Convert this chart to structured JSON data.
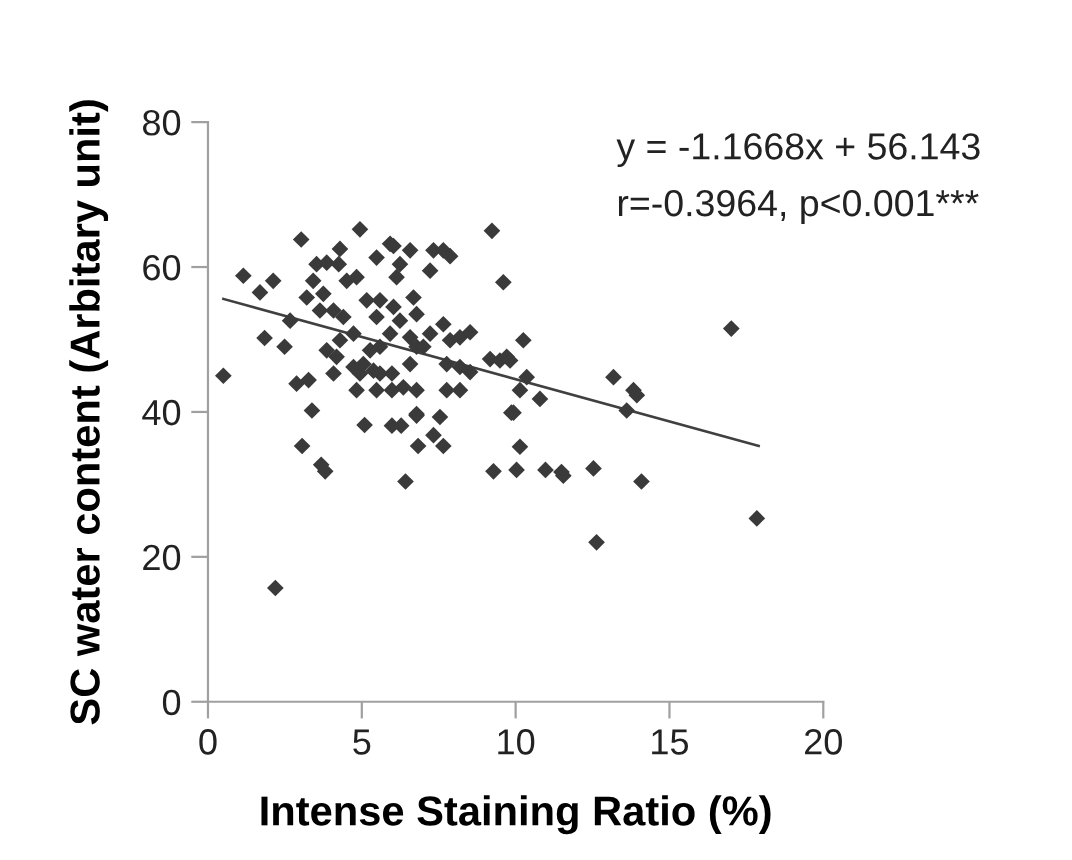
{
  "chart_data": {
    "type": "scatter",
    "xlabel": "Intense Staining Ratio (%)",
    "ylabel": "SC water content (Arbitary unit)",
    "annotations": [
      "y = -1.1668x + 56.143",
      "r=-0.3964, p<0.001***"
    ],
    "xlim": [
      0,
      20
    ],
    "xticks": [
      0,
      5,
      10,
      15,
      20
    ],
    "ylim": [
      0,
      80
    ],
    "yticks": [
      0,
      20,
      40,
      60,
      80
    ],
    "grid": false,
    "legend": false,
    "series": [
      {
        "marker": "diamond",
        "color": "#3a3a3a",
        "x": [
          0.5,
          1.15,
          1.69,
          2.12,
          1.84,
          3.03,
          2.49,
          2.67,
          2.88,
          3.27,
          3.38,
          3.53,
          3.86,
          4.29,
          4.25,
          3.42,
          3.21,
          3.75,
          3.64,
          4.08,
          4.94,
          4.83,
          4.51,
          4.4,
          4.29,
          3.86,
          4.08,
          4.73,
          4.73,
          4.94,
          4.83,
          5.38,
          5.48,
          5.16,
          5.59,
          5.48,
          5.92,
          6.03,
          6.24,
          6.13,
          6.03,
          6.24,
          5.92,
          5.59,
          5.27,
          5.05,
          5.59,
          5.98,
          5.98,
          5.48,
          6.57,
          6.68,
          6.78,
          6.57,
          6.78,
          6.57,
          6.35,
          6.78,
          6.78,
          7.33,
          7.65,
          7.87,
          7.22,
          7.65,
          7.22,
          7.0,
          7.87,
          8.19,
          8.52,
          7.76,
          8.19,
          7.76,
          8.19,
          8.52,
          9.17,
          9.49,
          9.71,
          9.23,
          9.6,
          10.25,
          10.36,
          10.14,
          9.93,
          4.18,
          3.06,
          3.68,
          3.81,
          2.19,
          5.09,
          5.98,
          6.28,
          6.78,
          7.54,
          6.83,
          7.33,
          7.65,
          6.42,
          9.86,
          9.28,
          10.03,
          10.14,
          17.01,
          9.82,
          10.79,
          13.18,
          13.83,
          13.94,
          13.61,
          10.97,
          11.49,
          11.55,
          12.53,
          14.09,
          12.63,
          17.84
        ],
        "values": [
          45.0,
          58.8,
          56.5,
          58.1,
          50.2,
          63.8,
          49.0,
          52.6,
          43.9,
          44.4,
          40.2,
          60.4,
          60.6,
          62.5,
          60.4,
          58.1,
          55.8,
          56.3,
          54.0,
          54.0,
          65.2,
          58.6,
          58.1,
          53.1,
          49.9,
          48.5,
          45.3,
          50.8,
          46.2,
          45.3,
          43.0,
          45.7,
          53.1,
          55.4,
          55.4,
          61.3,
          63.2,
          62.9,
          60.4,
          58.6,
          54.5,
          52.6,
          50.8,
          49.0,
          48.5,
          46.6,
          45.3,
          45.3,
          43.0,
          43.0,
          62.3,
          55.8,
          53.5,
          50.3,
          49.0,
          46.6,
          43.4,
          43.0,
          39.7,
          62.3,
          62.3,
          61.5,
          59.5,
          52.1,
          50.8,
          49.0,
          49.9,
          50.3,
          51.0,
          46.6,
          46.2,
          43.0,
          43.0,
          45.5,
          47.3,
          47.1,
          47.6,
          65.0,
          57.9,
          49.9,
          44.8,
          43.0,
          39.9,
          47.6,
          35.3,
          32.7,
          31.8,
          15.7,
          38.2,
          38.1,
          38.1,
          39.5,
          39.3,
          35.3,
          36.8,
          35.3,
          30.4,
          39.9,
          31.8,
          32.0,
          35.2,
          51.5,
          47.1,
          41.8,
          44.8,
          43.0,
          42.3,
          40.2,
          32.0,
          31.7,
          31.2,
          32.2,
          30.4,
          22.0,
          25.3
        ]
      },
      {
        "type": "line",
        "color": "#404040",
        "marker": "none",
        "line_style": "solid",
        "x": [
          0.5,
          17.9
        ],
        "values": [
          55.6,
          35.3
        ]
      }
    ]
  }
}
